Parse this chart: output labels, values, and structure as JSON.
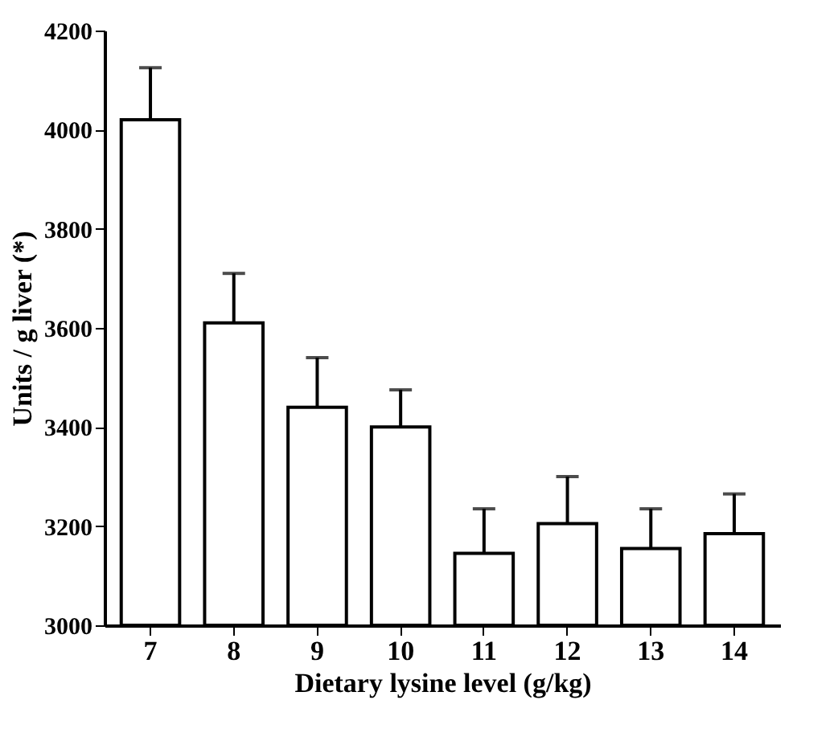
{
  "chart_data": {
    "type": "bar",
    "xlabel": "Dietary lysine level (g/kg)",
    "ylabel": "Units / g liver (*)",
    "categories": [
      "7",
      "8",
      "9",
      "10",
      "11",
      "12",
      "13",
      "14"
    ],
    "values": [
      4020,
      3610,
      3440,
      3400,
      3145,
      3205,
      3155,
      3185
    ],
    "errors": [
      105,
      100,
      100,
      75,
      90,
      95,
      80,
      80
    ],
    "color": "#ffffff",
    "ylim": [
      3000,
      4200
    ],
    "yticks": [
      3000,
      3200,
      3400,
      3600,
      3800,
      4000,
      4200
    ],
    "grid": false
  }
}
